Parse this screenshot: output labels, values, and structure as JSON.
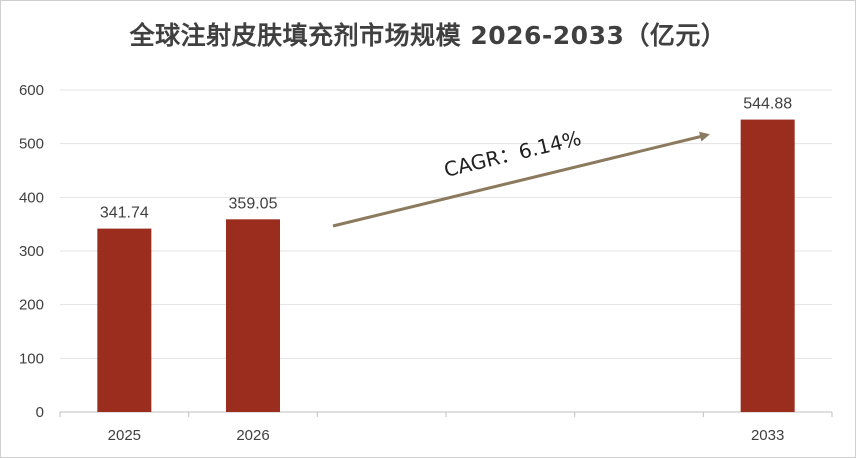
{
  "chart_data": {
    "type": "bar",
    "title": "全球注射皮肤填充剂市场规模 2026-2033（亿元）",
    "categories": [
      "2025",
      "2026",
      "",
      "",
      "",
      "2033"
    ],
    "values": [
      341.74,
      359.05,
      null,
      null,
      null,
      544.88
    ],
    "data_labels": [
      "341.74",
      "359.05",
      "",
      "",
      "",
      "544.88"
    ],
    "y_ticks": [
      "0",
      "100",
      "200",
      "300",
      "400",
      "500",
      "600"
    ],
    "ylim": [
      0,
      600
    ],
    "xlabel": "",
    "ylabel": "",
    "grid": true,
    "legend": "none",
    "bar_color": "#9b2d1f",
    "grid_color": "#e3e3e3",
    "annotation": {
      "text": "CAGR：6.14%",
      "arrow_color": "#8b7a5e"
    }
  }
}
